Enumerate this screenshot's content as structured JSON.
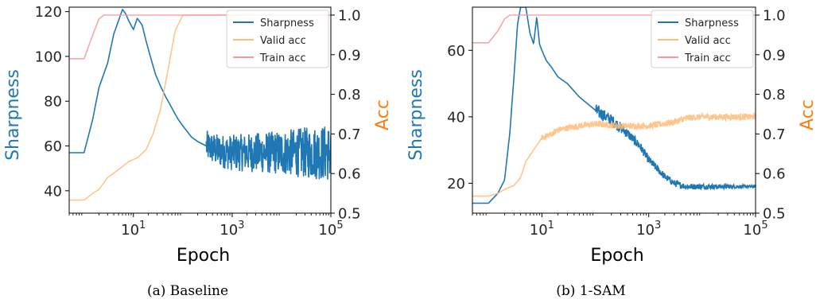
{
  "colors": {
    "sharpness": "#1f77b4",
    "valid_acc": "#ffbb78",
    "train_acc": "#f29a9a",
    "acc_label": "#ff7f0e"
  },
  "chart_data": [
    {
      "type": "line",
      "caption": "(a) Baseline",
      "xlabel": "Epoch",
      "ylabel_left": "Sharpness",
      "ylabel_right": "Acc",
      "x_scale": "log",
      "xlim": [
        0.5,
        100000
      ],
      "ylim_left": [
        30,
        122
      ],
      "ylim_right": [
        0.5,
        1.02
      ],
      "x_ticks": [
        10,
        1000,
        100000
      ],
      "x_tick_labels": [
        {
          "base": "10",
          "exp": "1"
        },
        {
          "base": "10",
          "exp": "3"
        },
        {
          "base": "10",
          "exp": "5"
        }
      ],
      "y_ticks_left": [
        40,
        60,
        80,
        100,
        120
      ],
      "y_ticks_right": [
        0.5,
        0.6,
        0.7,
        0.8,
        0.9,
        1.0
      ],
      "y_tick_labels_right": [
        "0.5",
        "0.6",
        "0.7",
        "0.8",
        "0.9",
        "1.0"
      ],
      "legend": {
        "position": "top-right",
        "entries": [
          "Sharpness",
          "Valid acc",
          "Train acc"
        ]
      },
      "series": [
        {
          "name": "Sharpness",
          "axis": "left",
          "x": [
            0.5,
            1,
            1.5,
            2,
            3,
            4,
            5,
            6,
            7,
            8,
            10,
            12,
            15,
            18,
            22,
            28,
            35,
            45,
            60,
            80,
            100,
            150,
            200,
            300,
            500,
            1000,
            2000,
            5000,
            10000,
            20000,
            50000,
            100000
          ],
          "y": [
            57,
            57,
            72,
            86,
            97,
            110,
            116,
            121,
            119,
            116,
            112,
            117,
            114,
            107,
            100,
            92,
            87,
            82,
            77,
            72,
            69,
            64,
            62,
            60,
            58,
            57,
            57,
            57,
            57,
            57,
            57,
            57
          ],
          "noise_band": [
            [
              300,
              7
            ],
            [
              10000,
              10
            ],
            [
              100000,
              13
            ]
          ]
        },
        {
          "name": "Valid acc",
          "axis": "left_right",
          "x": [
            0.5,
            1,
            1.5,
            2,
            3,
            5,
            8,
            12,
            18,
            25,
            35,
            50,
            70,
            100,
            100000
          ],
          "y": [
            0.533,
            0.533,
            0.55,
            0.56,
            0.59,
            0.61,
            0.63,
            0.64,
            0.66,
            0.7,
            0.76,
            0.86,
            0.96,
            1.0,
            1.0
          ]
        },
        {
          "name": "Train acc",
          "axis": "right",
          "x": [
            0.5,
            1,
            1.5,
            2,
            2.5,
            3,
            100000
          ],
          "y": [
            0.89,
            0.89,
            0.95,
            0.99,
            1.0,
            1.0,
            1.0
          ]
        }
      ]
    },
    {
      "type": "line",
      "caption": "(b) 1-SAM",
      "xlabel": "Epoch",
      "ylabel_left": "Sharpness",
      "ylabel_right": "Acc",
      "x_scale": "log",
      "xlim": [
        0.5,
        100000
      ],
      "ylim_left": [
        11,
        73
      ],
      "ylim_right": [
        0.5,
        1.02
      ],
      "x_ticks": [
        10,
        1000,
        100000
      ],
      "x_tick_labels": [
        {
          "base": "10",
          "exp": "1"
        },
        {
          "base": "10",
          "exp": "3"
        },
        {
          "base": "10",
          "exp": "5"
        }
      ],
      "y_ticks_left": [
        20,
        40,
        60
      ],
      "y_ticks_right": [
        0.5,
        0.6,
        0.7,
        0.8,
        0.9,
        1.0
      ],
      "y_tick_labels_right": [
        "0.5",
        "0.6",
        "0.7",
        "0.8",
        "0.9",
        "1.0"
      ],
      "legend": {
        "position": "top-right",
        "entries": [
          "Sharpness",
          "Valid acc",
          "Train acc"
        ]
      },
      "series": [
        {
          "name": "Sharpness",
          "axis": "left",
          "x": [
            0.5,
            1,
            1.5,
            2,
            2.5,
            3,
            3.5,
            4,
            5,
            6,
            7,
            8,
            9,
            10,
            12,
            15,
            20,
            30,
            50,
            100,
            200,
            400,
            700,
            1000,
            2000,
            3000,
            5000,
            10000,
            30000,
            100000
          ],
          "y": [
            14,
            14,
            17,
            21,
            35,
            52,
            68,
            73,
            73,
            65,
            62,
            70,
            62,
            60,
            57,
            55,
            52,
            50,
            46,
            42,
            39,
            35,
            31,
            27,
            22,
            20,
            19,
            19,
            19,
            19
          ],
          "noise_band": [
            [
              100,
              2
            ],
            [
              1000,
              1.2
            ],
            [
              100000,
              0.4
            ]
          ]
        },
        {
          "name": "Valid acc",
          "axis": "right",
          "x": [
            0.5,
            1,
            1.5,
            2,
            3,
            4,
            5,
            7,
            10,
            15,
            20,
            30,
            50,
            100,
            300,
            1000,
            3000,
            5000,
            10000,
            100000
          ],
          "y": [
            0.543,
            0.543,
            0.55,
            0.56,
            0.57,
            0.59,
            0.63,
            0.66,
            0.69,
            0.7,
            0.71,
            0.715,
            0.72,
            0.725,
            0.72,
            0.72,
            0.73,
            0.74,
            0.743,
            0.743
          ],
          "noise_band": [
            [
              10,
              0.008
            ],
            [
              100000,
              0.008
            ]
          ]
        },
        {
          "name": "Train acc",
          "axis": "right",
          "x": [
            0.5,
            1,
            1.5,
            2,
            2.5,
            3,
            100000
          ],
          "y": [
            0.93,
            0.93,
            0.96,
            0.99,
            1.0,
            1.0,
            1.0
          ]
        }
      ]
    }
  ]
}
